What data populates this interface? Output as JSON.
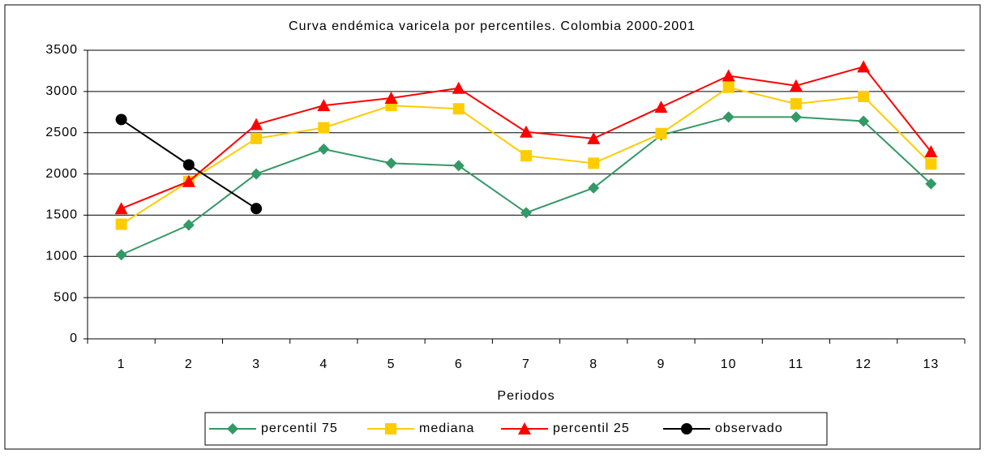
{
  "chart_data": {
    "type": "line",
    "title": "Curva endémica varicela por percentiles. Colombia 2000-2001",
    "x_label": "Periodos",
    "categories": [
      "1",
      "2",
      "3",
      "4",
      "5",
      "6",
      "7",
      "8",
      "9",
      "10",
      "11",
      "12",
      "13"
    ],
    "series": [
      {
        "name": "percentil 75",
        "color": "#339966",
        "marker": "diamond",
        "values": [
          1020,
          1380,
          2000,
          2300,
          2130,
          2100,
          1530,
          1830,
          2470,
          2690,
          2690,
          2640,
          1880
        ]
      },
      {
        "name": "mediana",
        "color": "#ffcc00",
        "marker": "square",
        "values": [
          1390,
          1910,
          2430,
          2560,
          2830,
          2790,
          2220,
          2130,
          2490,
          3050,
          2850,
          2940,
          2120
        ]
      },
      {
        "name": "percentil 25",
        "color": "#ff0000",
        "marker": "triangle",
        "values": [
          1580,
          1910,
          2600,
          2830,
          2920,
          3040,
          2510,
          2430,
          2810,
          3190,
          3070,
          3300,
          2270
        ]
      },
      {
        "name": "observado",
        "color": "#000000",
        "marker": "circle",
        "values": [
          2660,
          2110,
          1580,
          null,
          null,
          null,
          null,
          null,
          null,
          null,
          null,
          null,
          null
        ]
      }
    ],
    "ylim": [
      0,
      3500
    ],
    "yticks": [
      0,
      500,
      1000,
      1500,
      2000,
      2500,
      3000,
      3500
    ],
    "grid": true
  }
}
